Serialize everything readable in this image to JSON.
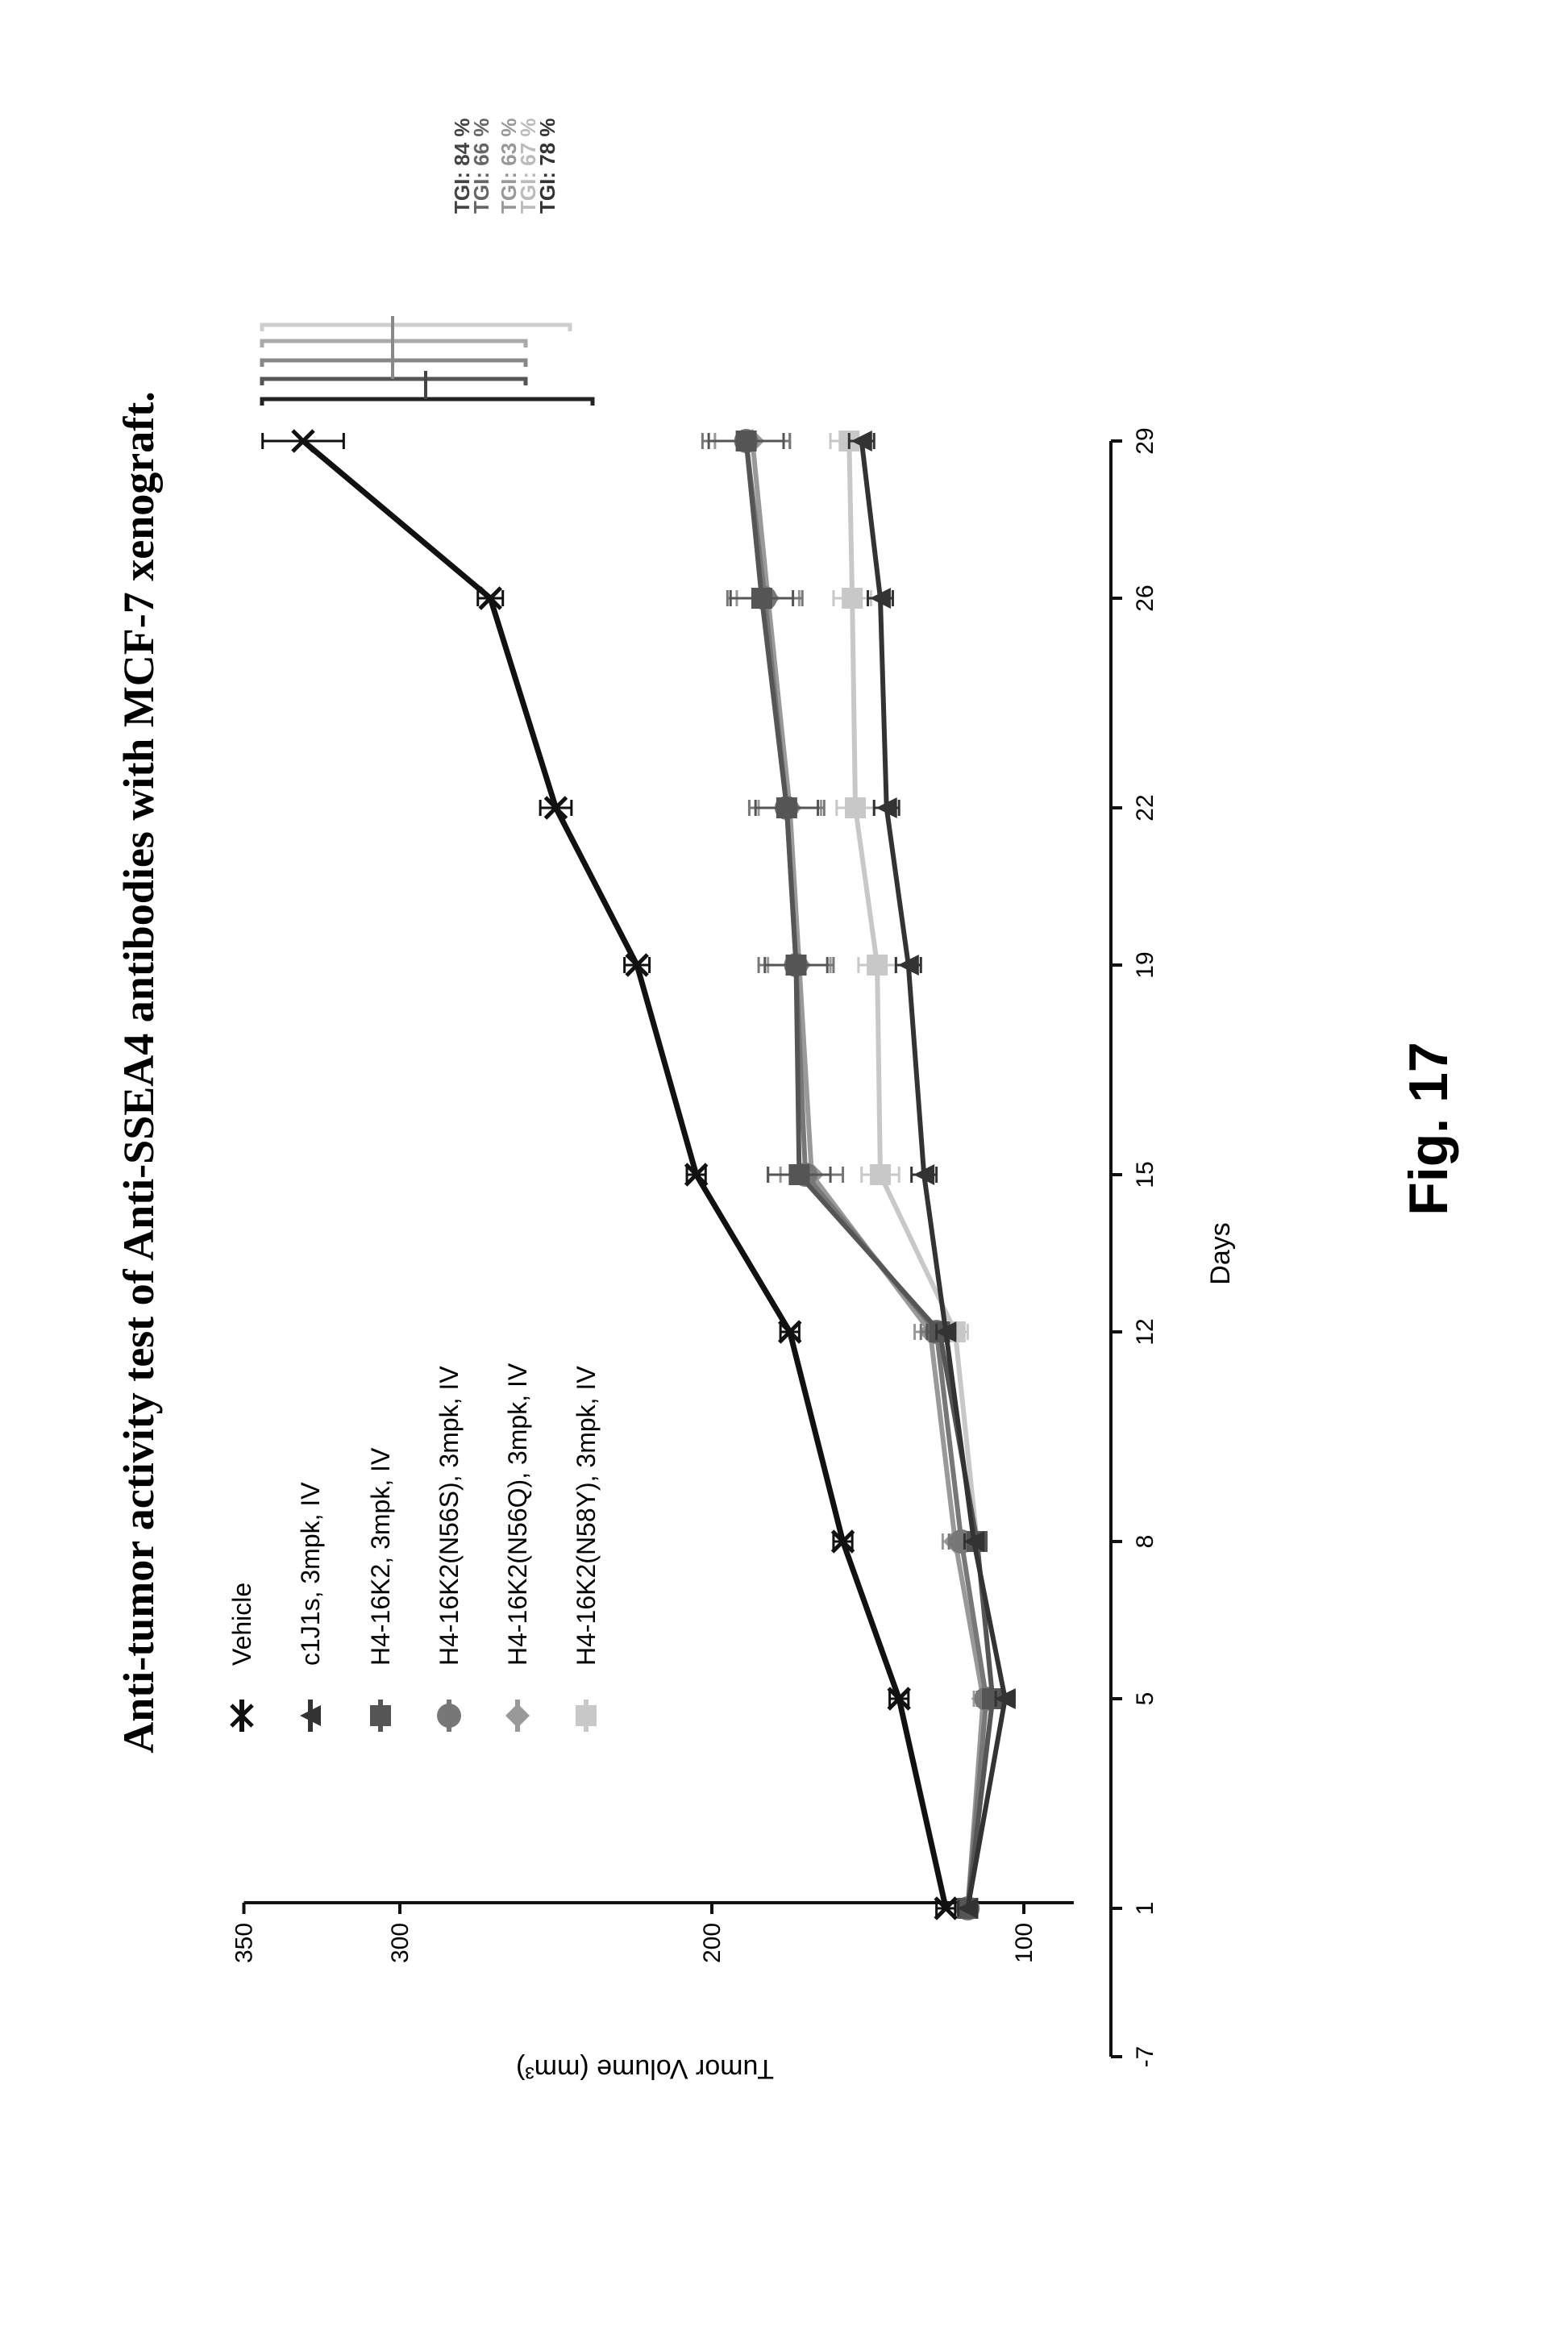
{
  "figure_label": "Fig. 17",
  "chart_data": {
    "type": "line",
    "orientation": "rotated-90-ccw",
    "title": "Anti-tumor activity test of Anti-SSEA4 antibodies with MCF-7 xenograft.",
    "xlabel": "Days",
    "ylabel": "Tumor Volume (mm³)",
    "x_ticks": [
      "-7",
      "1",
      "5",
      "8",
      "12",
      "15",
      "19",
      "22",
      "26",
      "29"
    ],
    "y_ticks": [
      "100",
      "200",
      "300",
      "350"
    ],
    "ylim": [
      80,
      350
    ],
    "x": [
      1,
      5,
      8,
      12,
      15,
      19,
      22,
      26,
      29
    ],
    "legend_position": "top-left",
    "series": [
      {
        "name": "Vehicle",
        "marker": "x",
        "color": "#111111",
        "values": [
          125,
          140,
          158,
          175,
          205,
          224,
          250,
          271,
          331
        ],
        "error": [
          3,
          3,
          3,
          3,
          3,
          4,
          5,
          4,
          13
        ]
      },
      {
        "name": "c1J1s, 3mpk, IV",
        "marker": "triangle",
        "color": "#333333",
        "values": [
          118,
          106,
          116,
          125,
          132,
          137,
          144,
          146,
          152
        ],
        "error": [
          3,
          3,
          3,
          3,
          4,
          4,
          4,
          4,
          4
        ]
      },
      {
        "name": "H4-16K2, 3mpk, IV",
        "marker": "square",
        "color": "#555555",
        "values": [
          118,
          110,
          115,
          127,
          172,
          173,
          176,
          184,
          189
        ],
        "error": [
          3,
          3,
          3,
          4,
          10,
          10,
          10,
          10,
          12
        ]
      },
      {
        "name": "H4-16K2(N56S), 3mpk, IV",
        "marker": "circle",
        "color": "#777777",
        "values": [
          118,
          112,
          120,
          128,
          170,
          173,
          176,
          183,
          189
        ],
        "error": [
          3,
          3,
          4,
          5,
          12,
          12,
          12,
          12,
          14
        ]
      },
      {
        "name": "H4-16K2(N56Q), 3mpk, IV",
        "marker": "diamond",
        "color": "#999999",
        "values": [
          118,
          113,
          122,
          130,
          168,
          172,
          175,
          182,
          187
        ],
        "error": [
          3,
          3,
          4,
          5,
          10,
          10,
          10,
          10,
          12
        ]
      },
      {
        "name": "H4-16K2(N58Y), 3mpk, IV",
        "marker": "square",
        "color": "#c8c8c8",
        "values": [
          118,
          110,
          115,
          122,
          146,
          147,
          154,
          155,
          156
        ],
        "error": [
          3,
          3,
          3,
          4,
          6,
          6,
          6,
          6,
          6
        ]
      }
    ],
    "annotations": [
      {
        "text": "TGI: 84 %",
        "color": "#333333"
      },
      {
        "text": "TGI: 66 %",
        "color": "#555555"
      },
      {
        "text": "TGI: 63 %",
        "color": "#777777"
      },
      {
        "text": "TGI: 67 %",
        "color": "#999999"
      },
      {
        "text": "TGI: 78 %",
        "color": "#333333"
      }
    ]
  }
}
